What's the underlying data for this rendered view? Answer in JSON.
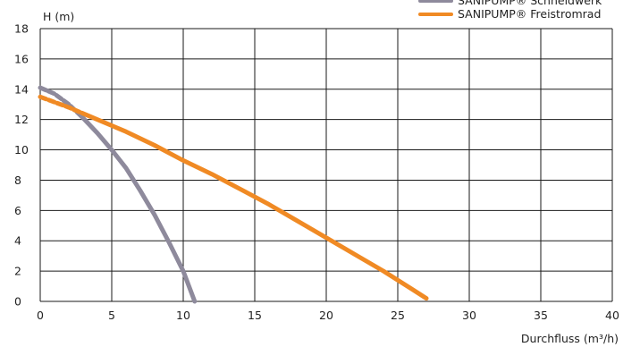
{
  "chart_data": {
    "type": "line",
    "xlabel": "Durchfluss (m³/h)",
    "ylabel": "H (m)",
    "xlim": [
      0,
      40
    ],
    "ylim": [
      0,
      18
    ],
    "x_ticks": [
      "0",
      "5",
      "10",
      "15",
      "20",
      "25",
      "30",
      "35",
      "40"
    ],
    "y_ticks": [
      "0",
      "2",
      "4",
      "6",
      "8",
      "10",
      "12",
      "14",
      "16",
      "18"
    ],
    "grid": true,
    "legend_position": "top-right",
    "series": [
      {
        "name": "SANIPUMP® Schneidwerk",
        "color": "#8e8a9c",
        "dash_start_segment": true,
        "x": [
          0,
          1,
          2,
          3,
          4,
          5,
          6,
          7,
          8,
          9,
          10,
          10.8
        ],
        "y": [
          14.1,
          13.7,
          13.0,
          12.1,
          11.1,
          10.0,
          8.8,
          7.3,
          5.7,
          3.9,
          2.0,
          0
        ]
      },
      {
        "name": "SANIPUMP® Freistromrad",
        "color": "#f08a24",
        "dash_start_segment": true,
        "x": [
          0,
          2,
          4,
          6,
          8,
          10,
          12,
          14,
          16,
          18,
          20,
          22,
          24,
          26,
          27
        ],
        "y": [
          13.5,
          12.8,
          12.0,
          11.2,
          10.3,
          9.3,
          8.4,
          7.4,
          6.4,
          5.3,
          4.2,
          3.1,
          2.0,
          0.8,
          0.2
        ]
      }
    ]
  }
}
